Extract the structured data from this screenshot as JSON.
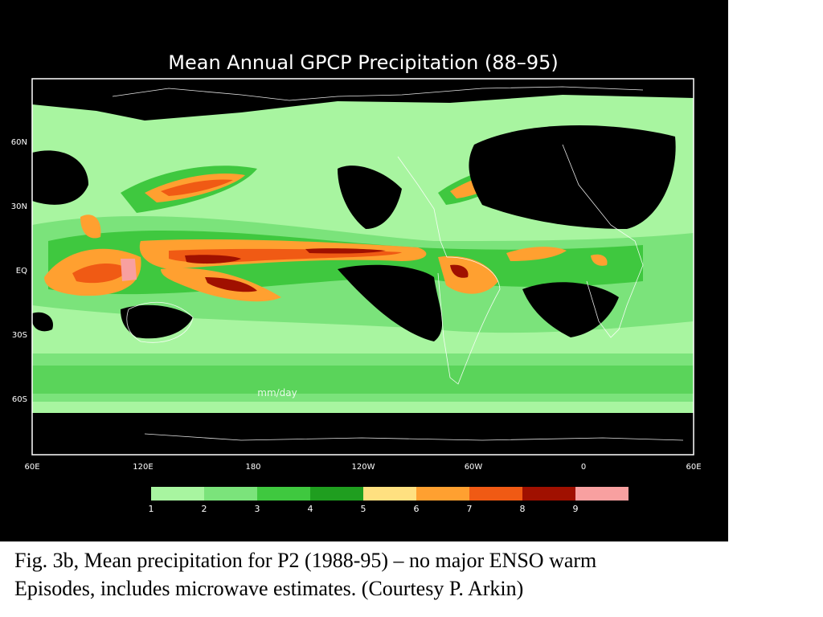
{
  "title": "Mean Annual GPCP Precipitation (88–95)",
  "units_label": "mm/day",
  "lat_ticks": [
    "60N",
    "30N",
    "EQ",
    "30S",
    "60S"
  ],
  "lon_ticks": [
    "60E",
    "120E",
    "180",
    "120W",
    "60W",
    "0",
    "60E"
  ],
  "colorbar": {
    "labels": [
      "1",
      "2",
      "3",
      "4",
      "5",
      "6",
      "7",
      "8",
      "9"
    ],
    "colors": [
      "#a8f5a0",
      "#7be37b",
      "#3fc83f",
      "#1f9e1f",
      "#ffe080",
      "#ffa030",
      "#f05a14",
      "#a01000",
      "#f8a0a0"
    ]
  },
  "caption": {
    "line1": "Fig. 3b, Mean precipitation for P2 (1988-95) – no major ENSO warm",
    "line2": "Episodes, includes microwave estimates. (Courtesy P. Arkin)"
  }
}
